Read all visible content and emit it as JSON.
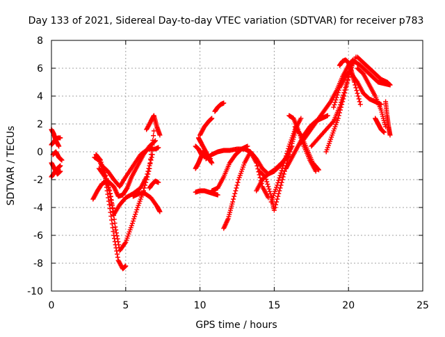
{
  "chart_data": {
    "type": "scatter",
    "title": "Day 133 of 2021, Sidereal Day-to-day VTEC variation (SDTVAR) for receiver p783",
    "xlabel": "GPS time / hours",
    "ylabel": "SDTVAR / TECUs",
    "xlim": [
      0,
      25
    ],
    "ylim": [
      -10,
      8
    ],
    "xticks": [
      0,
      5,
      10,
      15,
      20,
      25
    ],
    "yticks": [
      -10,
      -8,
      -6,
      -4,
      -2,
      0,
      2,
      4,
      6,
      8
    ],
    "grid": true,
    "marker": "plus",
    "color": "#ff0000",
    "series": [
      {
        "x": [
          0.0,
          0.15,
          0.3,
          0.45,
          0.6
        ],
        "y": [
          0.5,
          0.7,
          0.9,
          1.0,
          1.0
        ]
      },
      {
        "x": [
          0.0,
          0.15,
          0.3,
          0.5
        ],
        "y": [
          1.6,
          1.3,
          0.8,
          0.4
        ]
      },
      {
        "x": [
          0.0,
          0.2,
          0.4,
          0.6
        ],
        "y": [
          -1.8,
          -1.5,
          -1.2,
          -1.0
        ]
      },
      {
        "x": [
          0.0,
          0.2,
          0.4,
          0.6
        ],
        "y": [
          -0.8,
          -1.2,
          -1.6,
          -1.4
        ]
      },
      {
        "x": [
          0.1,
          0.3,
          0.5,
          0.7
        ],
        "y": [
          -0.2,
          0.0,
          -0.4,
          -0.6
        ]
      },
      {
        "x": [
          2.8,
          3.1,
          3.4,
          3.8,
          4.2,
          4.5,
          4.8,
          5.1,
          5.4,
          5.8,
          6.2,
          6.6,
          7.0
        ],
        "y": [
          -3.4,
          -2.8,
          -2.3,
          -2.1,
          -2.5,
          -3.2,
          -3.1,
          -2.6,
          -1.8,
          -1.0,
          -0.2,
          0.4,
          0.8
        ]
      },
      {
        "x": [
          2.9,
          3.2,
          3.6,
          4.0,
          4.3,
          4.6,
          5.0,
          5.4,
          5.8,
          6.2,
          6.6,
          6.9
        ],
        "y": [
          -0.4,
          -0.6,
          -1.5,
          -3.2,
          -5.4,
          -7.1,
          -6.5,
          -5.3,
          -4.0,
          -2.8,
          -1.2,
          1.5
        ]
      },
      {
        "x": [
          3.0,
          3.3,
          3.6,
          3.9,
          4.2,
          4.5,
          4.8,
          5.0
        ],
        "y": [
          -0.2,
          -0.6,
          -1.8,
          -3.8,
          -6.0,
          -7.8,
          -8.4,
          -8.2
        ]
      },
      {
        "x": [
          3.2,
          3.6,
          3.9,
          4.2,
          4.6,
          5.0,
          5.5,
          6.0,
          6.4,
          6.8
        ],
        "y": [
          -1.2,
          -1.8,
          -2.8,
          -4.5,
          -3.8,
          -3.3,
          -3.0,
          -2.6,
          -1.8,
          -0.2
        ]
      },
      {
        "x": [
          3.4,
          3.8,
          4.2,
          4.6,
          5.0,
          5.5,
          6.0,
          6.5,
          7.0,
          7.2
        ],
        "y": [
          -1.0,
          -1.4,
          -2.0,
          -2.5,
          -1.8,
          -1.0,
          -0.2,
          0.2,
          0.2,
          0.3
        ]
      },
      {
        "x": [
          5.5,
          5.9,
          6.3,
          6.7,
          7.1,
          7.3
        ],
        "y": [
          -3.2,
          -3.0,
          -3.0,
          -3.3,
          -3.9,
          -4.3
        ]
      },
      {
        "x": [
          6.6,
          6.8,
          7.0,
          7.2
        ],
        "y": [
          -2.6,
          -2.3,
          -2.1,
          -2.2
        ]
      },
      {
        "x": [
          6.4,
          6.7,
          6.9,
          7.1,
          7.3
        ],
        "y": [
          1.6,
          2.2,
          2.6,
          1.8,
          1.2
        ]
      },
      {
        "x": [
          9.7,
          10.0,
          10.3,
          10.6,
          10.9,
          11.2
        ],
        "y": [
          -2.9,
          -2.8,
          -2.8,
          -2.9,
          -3.0,
          -3.1
        ]
      },
      {
        "x": [
          9.7,
          9.9,
          10.1,
          10.3,
          10.5,
          10.7
        ],
        "y": [
          0.4,
          0.2,
          -0.2,
          -0.3,
          -0.4,
          -0.5
        ]
      },
      {
        "x": [
          9.7,
          9.9,
          10.1,
          10.3
        ],
        "y": [
          -1.2,
          -0.8,
          -0.3,
          0.1
        ]
      },
      {
        "x": [
          9.9,
          10.1,
          10.4,
          10.6,
          10.8
        ],
        "y": [
          1.0,
          0.6,
          0.0,
          -0.5,
          -0.8
        ]
      },
      {
        "x": [
          10.0,
          10.3,
          10.6,
          10.8
        ],
        "y": [
          1.2,
          1.8,
          2.2,
          2.4
        ]
      },
      {
        "x": [
          11.0,
          11.2,
          11.4,
          11.6
        ],
        "y": [
          2.9,
          3.2,
          3.4,
          3.5
        ]
      },
      {
        "x": [
          10.4,
          10.8,
          11.2,
          11.6,
          12.0,
          12.5,
          13.0,
          13.4,
          13.8,
          14.2,
          14.6,
          15.0,
          15.5,
          16.0
        ],
        "y": [
          -0.5,
          -0.2,
          0.0,
          0.1,
          0.1,
          0.2,
          0.2,
          0.0,
          -0.5,
          -1.2,
          -1.6,
          -1.3,
          -0.8,
          -0.3
        ]
      },
      {
        "x": [
          11.6,
          11.9,
          12.2,
          12.6,
          13.0,
          13.4,
          13.8,
          14.2,
          14.6
        ],
        "y": [
          -5.5,
          -4.8,
          -3.6,
          -2.0,
          -0.8,
          0.0,
          -0.8,
          -2.5,
          -3.3
        ]
      },
      {
        "x": [
          10.8,
          11.2,
          11.6,
          12.0,
          12.4,
          12.8,
          13.2
        ],
        "y": [
          -2.8,
          -2.6,
          -1.8,
          -0.8,
          -0.2,
          0.2,
          0.4
        ]
      },
      {
        "x": [
          13.8,
          14.2,
          14.6,
          15.0,
          15.4,
          15.8,
          16.2
        ],
        "y": [
          -2.8,
          -2.0,
          -1.6,
          -1.4,
          -1.0,
          -0.4,
          0.4
        ]
      },
      {
        "x": [
          14.0,
          14.4,
          14.8,
          15.0,
          15.4,
          15.8,
          16.2,
          16.5
        ],
        "y": [
          -1.4,
          -1.8,
          -3.2,
          -4.2,
          -2.6,
          -1.0,
          0.6,
          1.8
        ]
      },
      {
        "x": [
          14.8,
          15.2,
          15.6,
          16.0,
          16.4,
          16.8
        ],
        "y": [
          -3.6,
          -2.4,
          -1.0,
          0.4,
          1.6,
          2.4
        ]
      },
      {
        "x": [
          15.8,
          16.2,
          16.6,
          17.0,
          17.4,
          17.8,
          18.2,
          18.6
        ],
        "y": [
          -1.2,
          -0.4,
          0.4,
          1.2,
          1.8,
          2.2,
          2.4,
          2.6
        ]
      },
      {
        "x": [
          16.0,
          16.3,
          16.6,
          17.0,
          17.4,
          17.8
        ],
        "y": [
          2.6,
          2.4,
          1.6,
          0.4,
          -0.6,
          -1.4
        ]
      },
      {
        "x": [
          16.4,
          16.8,
          17.2,
          17.6,
          18.0
        ],
        "y": [
          1.8,
          1.2,
          0.2,
          -0.8,
          -1.3
        ]
      },
      {
        "x": [
          16.8,
          17.2,
          17.6,
          18.0,
          18.4,
          18.8,
          19.2,
          19.6,
          20.0,
          20.3
        ],
        "y": [
          0.6,
          1.2,
          1.8,
          2.4,
          3.0,
          3.6,
          4.4,
          5.4,
          6.2,
          6.6
        ]
      },
      {
        "x": [
          17.5,
          18.0,
          18.5,
          19.0,
          19.4,
          19.8,
          20.2
        ],
        "y": [
          0.4,
          1.0,
          1.6,
          2.2,
          3.2,
          4.6,
          6.2
        ]
      },
      {
        "x": [
          18.5,
          18.9,
          19.3,
          19.7,
          20.1,
          20.5
        ],
        "y": [
          0.0,
          1.2,
          2.4,
          4.0,
          5.8,
          6.8
        ]
      },
      {
        "x": [
          19.0,
          19.4,
          19.8,
          20.1
        ],
        "y": [
          3.2,
          4.6,
          5.4,
          5.8
        ]
      },
      {
        "x": [
          19.4,
          19.6,
          19.8,
          20.0,
          20.2,
          20.4,
          20.8
        ],
        "y": [
          6.2,
          6.5,
          6.6,
          6.4,
          5.8,
          5.0,
          3.4
        ]
      },
      {
        "x": [
          20.6,
          21.0,
          21.4,
          21.8,
          22.2,
          22.6,
          22.8
        ],
        "y": [
          6.8,
          6.4,
          6.0,
          5.6,
          5.2,
          5.0,
          4.8
        ]
      },
      {
        "x": [
          20.4,
          20.8,
          21.2,
          21.6,
          22.0,
          22.4,
          22.8
        ],
        "y": [
          6.5,
          6.2,
          5.8,
          5.4,
          5.0,
          4.9,
          4.8
        ]
      },
      {
        "x": [
          20.2,
          20.6,
          21.0,
          21.4,
          21.8,
          22.2
        ],
        "y": [
          5.6,
          5.0,
          4.2,
          3.8,
          3.6,
          3.4
        ]
      },
      {
        "x": [
          20.6,
          21.0,
          21.4,
          21.8,
          22.2,
          22.5
        ],
        "y": [
          6.0,
          5.6,
          4.8,
          4.0,
          3.0,
          1.8
        ]
      },
      {
        "x": [
          21.8,
          22.0,
          22.2,
          22.4
        ],
        "y": [
          2.4,
          2.0,
          1.6,
          1.4
        ]
      },
      {
        "x": [
          22.5,
          22.6,
          22.7,
          22.8
        ],
        "y": [
          3.6,
          2.6,
          1.8,
          1.2
        ]
      }
    ]
  }
}
